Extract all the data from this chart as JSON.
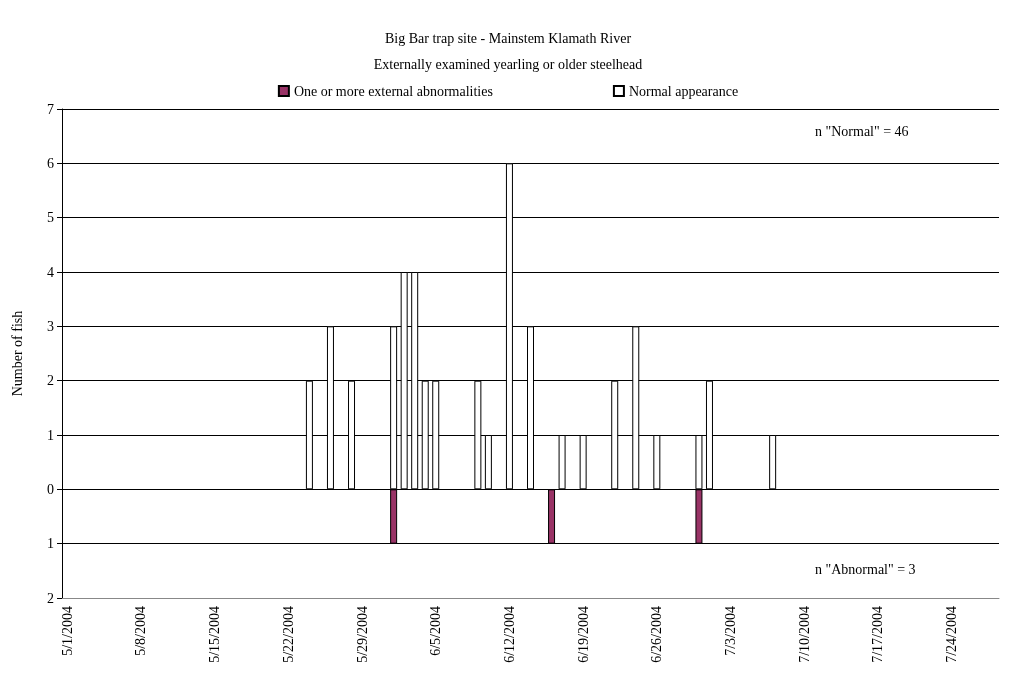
{
  "chart_data": {
    "type": "bar",
    "title": "Big Bar trap site - Mainstem Klamath River",
    "subtitle": "Externally examined yearling or older steelhead",
    "ylabel": "Number of fish",
    "categories": [
      "5/1/2004",
      null,
      null,
      null,
      null,
      null,
      null,
      "5/8/2004",
      null,
      null,
      null,
      null,
      null,
      null,
      "5/15/2004",
      null,
      null,
      null,
      null,
      null,
      null,
      "5/22/2004",
      null,
      null,
      null,
      null,
      null,
      null,
      "5/29/2004",
      null,
      null,
      null,
      null,
      null,
      null,
      "6/5/2004",
      null,
      null,
      null,
      null,
      null,
      null,
      "6/12/2004",
      null,
      null,
      null,
      null,
      null,
      null,
      "6/19/2004",
      null,
      null,
      null,
      null,
      null,
      null,
      "6/26/2004",
      null,
      null,
      null,
      null,
      null,
      null,
      "7/3/2004",
      null,
      null,
      null,
      null,
      null,
      null,
      "7/10/2004",
      null,
      null,
      null,
      null,
      null,
      null,
      "7/17/2004",
      null,
      null,
      null,
      null,
      null,
      null,
      "7/24/2004",
      null,
      null,
      null,
      null
    ],
    "series": [
      {
        "name": "One or more external abnormalities",
        "color": "#993366",
        "values": [
          null,
          null,
          null,
          null,
          null,
          null,
          null,
          null,
          null,
          null,
          null,
          null,
          null,
          null,
          null,
          null,
          null,
          null,
          null,
          null,
          null,
          null,
          null,
          null,
          null,
          null,
          null,
          null,
          null,
          null,
          null,
          -1,
          null,
          null,
          null,
          null,
          null,
          null,
          null,
          null,
          null,
          null,
          null,
          null,
          null,
          null,
          -1,
          null,
          null,
          null,
          null,
          null,
          null,
          null,
          null,
          null,
          null,
          null,
          null,
          null,
          -1,
          null,
          null,
          null,
          null,
          null,
          null,
          null,
          null,
          null,
          null,
          null,
          null,
          null,
          null,
          null,
          null,
          null,
          null,
          null,
          null,
          null,
          null,
          null,
          null,
          null,
          null,
          null,
          null
        ]
      },
      {
        "name": "Normal appearance",
        "color": "#ffffff",
        "values": [
          null,
          null,
          null,
          null,
          null,
          null,
          null,
          null,
          null,
          null,
          null,
          null,
          null,
          null,
          null,
          null,
          null,
          null,
          null,
          null,
          null,
          null,
          null,
          2,
          null,
          3,
          null,
          2,
          null,
          null,
          null,
          3,
          4,
          4,
          2,
          2,
          null,
          null,
          null,
          2,
          1,
          null,
          6,
          null,
          3,
          null,
          null,
          1,
          null,
          1,
          null,
          null,
          2,
          null,
          3,
          null,
          1,
          null,
          null,
          null,
          1,
          2,
          null,
          null,
          null,
          null,
          null,
          1,
          null,
          null,
          null,
          null,
          null,
          null,
          null,
          null,
          null,
          null,
          null,
          null,
          null,
          null,
          null,
          null,
          null,
          null,
          null,
          null,
          null
        ]
      }
    ],
    "ylim": [
      -2,
      7
    ],
    "yticks": [
      {
        "value": -2,
        "label": "2"
      },
      {
        "value": -1,
        "label": "1"
      },
      0,
      1,
      2,
      3,
      4,
      5,
      6,
      7
    ],
    "grid": "y",
    "legend": "top",
    "annotations": [
      "n \"Normal\" = 46",
      "n \"Abnormal\" = 3"
    ]
  }
}
